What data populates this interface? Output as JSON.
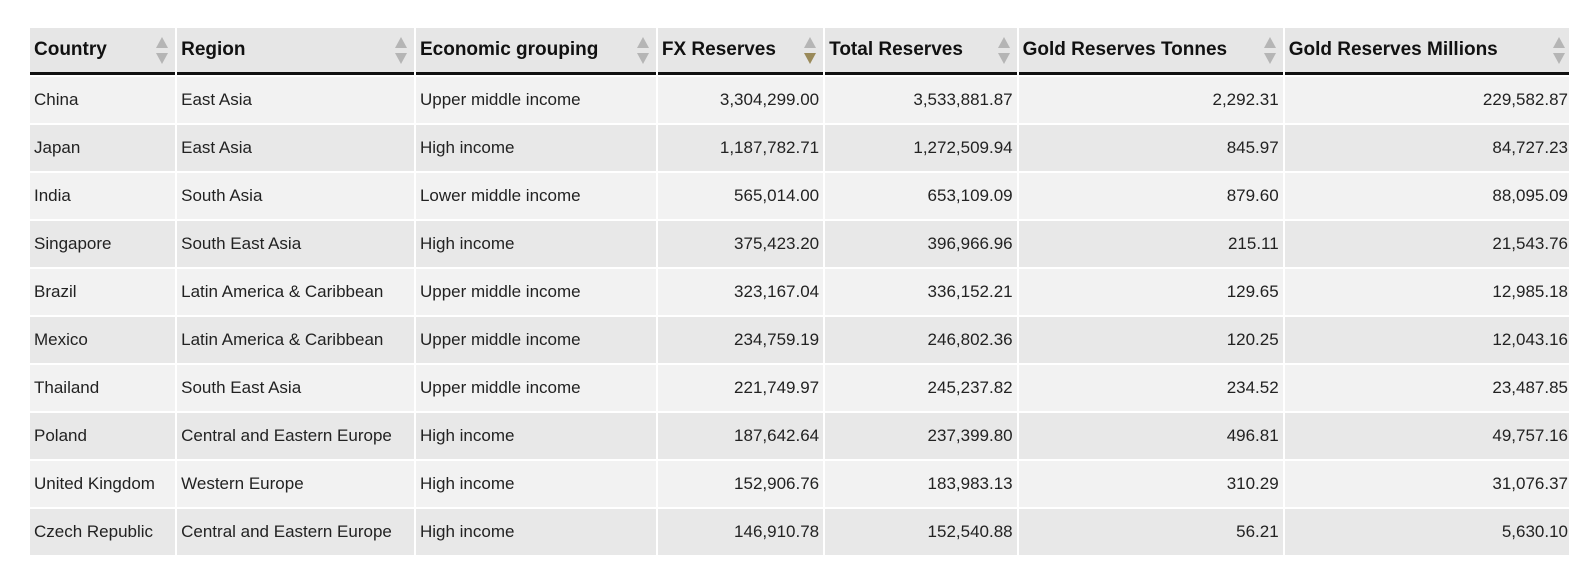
{
  "table": {
    "headers": [
      "Country",
      "Region",
      "Economic grouping",
      "FX Reserves",
      "Total Reserves",
      "Gold Reserves Tonnes",
      "Gold Reserves Millions"
    ],
    "sort": {
      "column": 3,
      "direction": "descending"
    },
    "rows": [
      [
        "China",
        "East Asia",
        "Upper middle income",
        "3,304,299.00",
        "3,533,881.87",
        "2,292.31",
        "229,582.87"
      ],
      [
        "Japan",
        "East Asia",
        "High income",
        "1,187,782.71",
        "1,272,509.94",
        "845.97",
        "84,727.23"
      ],
      [
        "India",
        "South Asia",
        "Lower middle income",
        "565,014.00",
        "653,109.09",
        "879.60",
        "88,095.09"
      ],
      [
        "Singapore",
        "South East Asia",
        "High income",
        "375,423.20",
        "396,966.96",
        "215.11",
        "21,543.76"
      ],
      [
        "Brazil",
        "Latin America & Caribbean",
        "Upper middle income",
        "323,167.04",
        "336,152.21",
        "129.65",
        "12,985.18"
      ],
      [
        "Mexico",
        "Latin America & Caribbean",
        "Upper middle income",
        "234,759.19",
        "246,802.36",
        "120.25",
        "12,043.16"
      ],
      [
        "Thailand",
        "South East Asia",
        "Upper middle income",
        "221,749.97",
        "245,237.82",
        "234.52",
        "23,487.85"
      ],
      [
        "Poland",
        "Central and Eastern Europe",
        "High income",
        "187,642.64",
        "237,399.80",
        "496.81",
        "49,757.16"
      ],
      [
        "United Kingdom",
        "Western Europe",
        "High income",
        "152,906.76",
        "183,983.13",
        "310.29",
        "31,076.37"
      ],
      [
        "Czech Republic",
        "Central and Eastern Europe",
        "High income",
        "146,910.78",
        "152,540.88",
        "56.21",
        "5,630.10"
      ]
    ]
  }
}
